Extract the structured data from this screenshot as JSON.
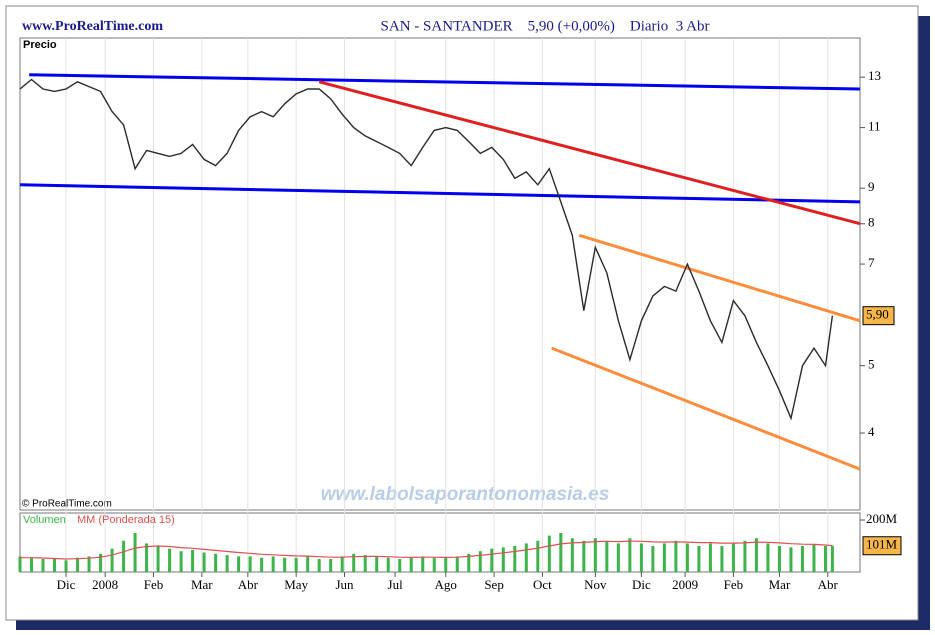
{
  "chart_data": [
    {
      "type": "line",
      "title": "SAN - SANTANDER    5,90 (+0,00%)    Diario  3 Abr",
      "ylabel": "Precio",
      "annotations": [
        "www.ProRealTime.com",
        "© ProRealTime.com",
        "www.labolsaporantonomasia.es"
      ],
      "log_scale": true,
      "color": "#2a2a2a",
      "x": [
        0,
        5,
        10,
        15,
        20,
        25,
        30,
        35,
        40,
        45,
        50,
        55,
        60,
        65,
        70,
        75,
        80,
        85,
        90,
        95,
        100,
        105,
        110,
        115,
        120,
        125,
        130,
        135,
        140,
        145,
        150,
        155,
        160,
        165,
        170,
        175,
        180,
        185,
        190,
        195,
        200,
        205,
        210,
        215,
        220,
        225,
        230,
        235,
        240,
        245,
        250,
        255,
        260,
        265,
        270,
        275,
        280,
        285,
        290,
        295,
        300,
        305,
        310,
        315,
        320,
        325,
        330,
        335,
        340,
        345,
        350,
        353
      ],
      "values": [
        12.5,
        12.9,
        12.5,
        12.4,
        12.5,
        12.8,
        12.6,
        12.4,
        11.6,
        11.1,
        9.6,
        10.2,
        10.1,
        10.0,
        10.1,
        10.4,
        9.9,
        9.7,
        10.1,
        10.9,
        11.4,
        11.6,
        11.4,
        11.9,
        12.3,
        12.5,
        12.5,
        12.1,
        11.5,
        11.0,
        10.7,
        10.5,
        10.3,
        10.1,
        9.7,
        10.3,
        10.9,
        11.0,
        10.9,
        10.5,
        10.1,
        10.3,
        9.9,
        9.3,
        9.5,
        9.1,
        9.6,
        8.6,
        7.7,
        6.0,
        7.4,
        6.8,
        5.8,
        5.1,
        5.8,
        6.3,
        6.5,
        6.4,
        7.0,
        6.4,
        5.8,
        5.4,
        6.2,
        5.9,
        5.4,
        5.0,
        4.6,
        4.2,
        5.0,
        5.3,
        5.0,
        5.9
      ],
      "last_value": {
        "value": 5.9,
        "label": "5,90"
      },
      "trendlines": [
        {
          "color": "#0000ee",
          "x": [
            4,
            365
          ],
          "values": [
            13.1,
            12.5
          ]
        },
        {
          "color": "#0000ee",
          "x": [
            0,
            365
          ],
          "values": [
            9.1,
            8.6
          ]
        },
        {
          "color": "#e02020",
          "x": [
            130,
            365
          ],
          "values": [
            12.8,
            8.0
          ]
        },
        {
          "color": "#ff8c3c",
          "x": [
            243,
            365
          ],
          "values": [
            7.7,
            5.8
          ]
        },
        {
          "color": "#ff8c3c",
          "x": [
            231,
            365
          ],
          "values": [
            5.3,
            3.55
          ]
        }
      ],
      "xlim": [
        0,
        365
      ],
      "xticks": [
        {
          "value": 20,
          "label": "Dic"
        },
        {
          "value": 37,
          "label": "2008"
        },
        {
          "value": 58,
          "label": "Feb"
        },
        {
          "value": 79,
          "label": "Mar"
        },
        {
          "value": 99,
          "label": "Abr"
        },
        {
          "value": 120,
          "label": "May"
        },
        {
          "value": 141,
          "label": "Jun"
        },
        {
          "value": 163,
          "label": "Jul"
        },
        {
          "value": 185,
          "label": "Ago"
        },
        {
          "value": 206,
          "label": "Sep"
        },
        {
          "value": 227,
          "label": "Oct"
        },
        {
          "value": 250,
          "label": "Nov"
        },
        {
          "value": 270,
          "label": "Dic"
        },
        {
          "value": 289,
          "label": "2009"
        },
        {
          "value": 310,
          "label": "Feb"
        },
        {
          "value": 330,
          "label": "Mar"
        },
        {
          "value": 351,
          "label": "Abr"
        }
      ],
      "ylim": [
        3.1,
        14.8
      ],
      "yticks": [
        4,
        5,
        7,
        8,
        9,
        11,
        13
      ]
    },
    {
      "type": "bar",
      "x": [
        0,
        5,
        10,
        15,
        20,
        25,
        30,
        35,
        40,
        45,
        50,
        55,
        60,
        65,
        70,
        75,
        80,
        85,
        90,
        95,
        100,
        105,
        110,
        115,
        120,
        125,
        130,
        135,
        140,
        145,
        150,
        155,
        160,
        165,
        170,
        175,
        180,
        185,
        190,
        195,
        200,
        205,
        210,
        215,
        220,
        225,
        230,
        235,
        240,
        245,
        250,
        255,
        260,
        265,
        270,
        275,
        280,
        285,
        290,
        295,
        300,
        305,
        310,
        315,
        320,
        325,
        330,
        335,
        340,
        345,
        350,
        353
      ],
      "series": [
        {
          "name": "Volumen",
          "color": "#3cb44b",
          "values": [
            60,
            55,
            50,
            50,
            45,
            55,
            60,
            70,
            90,
            120,
            150,
            110,
            100,
            90,
            80,
            85,
            75,
            70,
            65,
            60,
            60,
            55,
            60,
            55,
            55,
            60,
            50,
            50,
            60,
            70,
            65,
            60,
            55,
            50,
            55,
            60,
            55,
            55,
            60,
            70,
            80,
            90,
            95,
            100,
            110,
            120,
            140,
            150,
            130,
            120,
            130,
            120,
            110,
            130,
            110,
            100,
            110,
            120,
            110,
            100,
            110,
            100,
            110,
            120,
            130,
            110,
            100,
            95,
            100,
            105,
            100,
            101
          ]
        },
        {
          "name": "MM (Ponderada 15)",
          "color": "#e05050",
          "values": [
            55,
            55,
            54,
            52,
            50,
            51,
            53,
            57,
            65,
            78,
            92,
            98,
            100,
            98,
            94,
            91,
            87,
            83,
            79,
            75,
            72,
            68,
            66,
            64,
            62,
            61,
            59,
            57,
            57,
            59,
            60,
            60,
            59,
            57,
            56,
            57,
            57,
            56,
            57,
            60,
            64,
            69,
            74,
            79,
            85,
            92,
            100,
            108,
            112,
            114,
            117,
            118,
            117,
            119,
            118,
            116,
            115,
            116,
            115,
            113,
            113,
            111,
            111,
            112,
            115,
            114,
            112,
            109,
            107,
            106,
            104,
            101
          ]
        }
      ],
      "last_value": {
        "value": 101,
        "label": "101M"
      },
      "xlim": [
        0,
        365
      ],
      "ylim": [
        0,
        227
      ],
      "yticks": [
        {
          "value": 200,
          "label": "200M"
        }
      ]
    }
  ]
}
